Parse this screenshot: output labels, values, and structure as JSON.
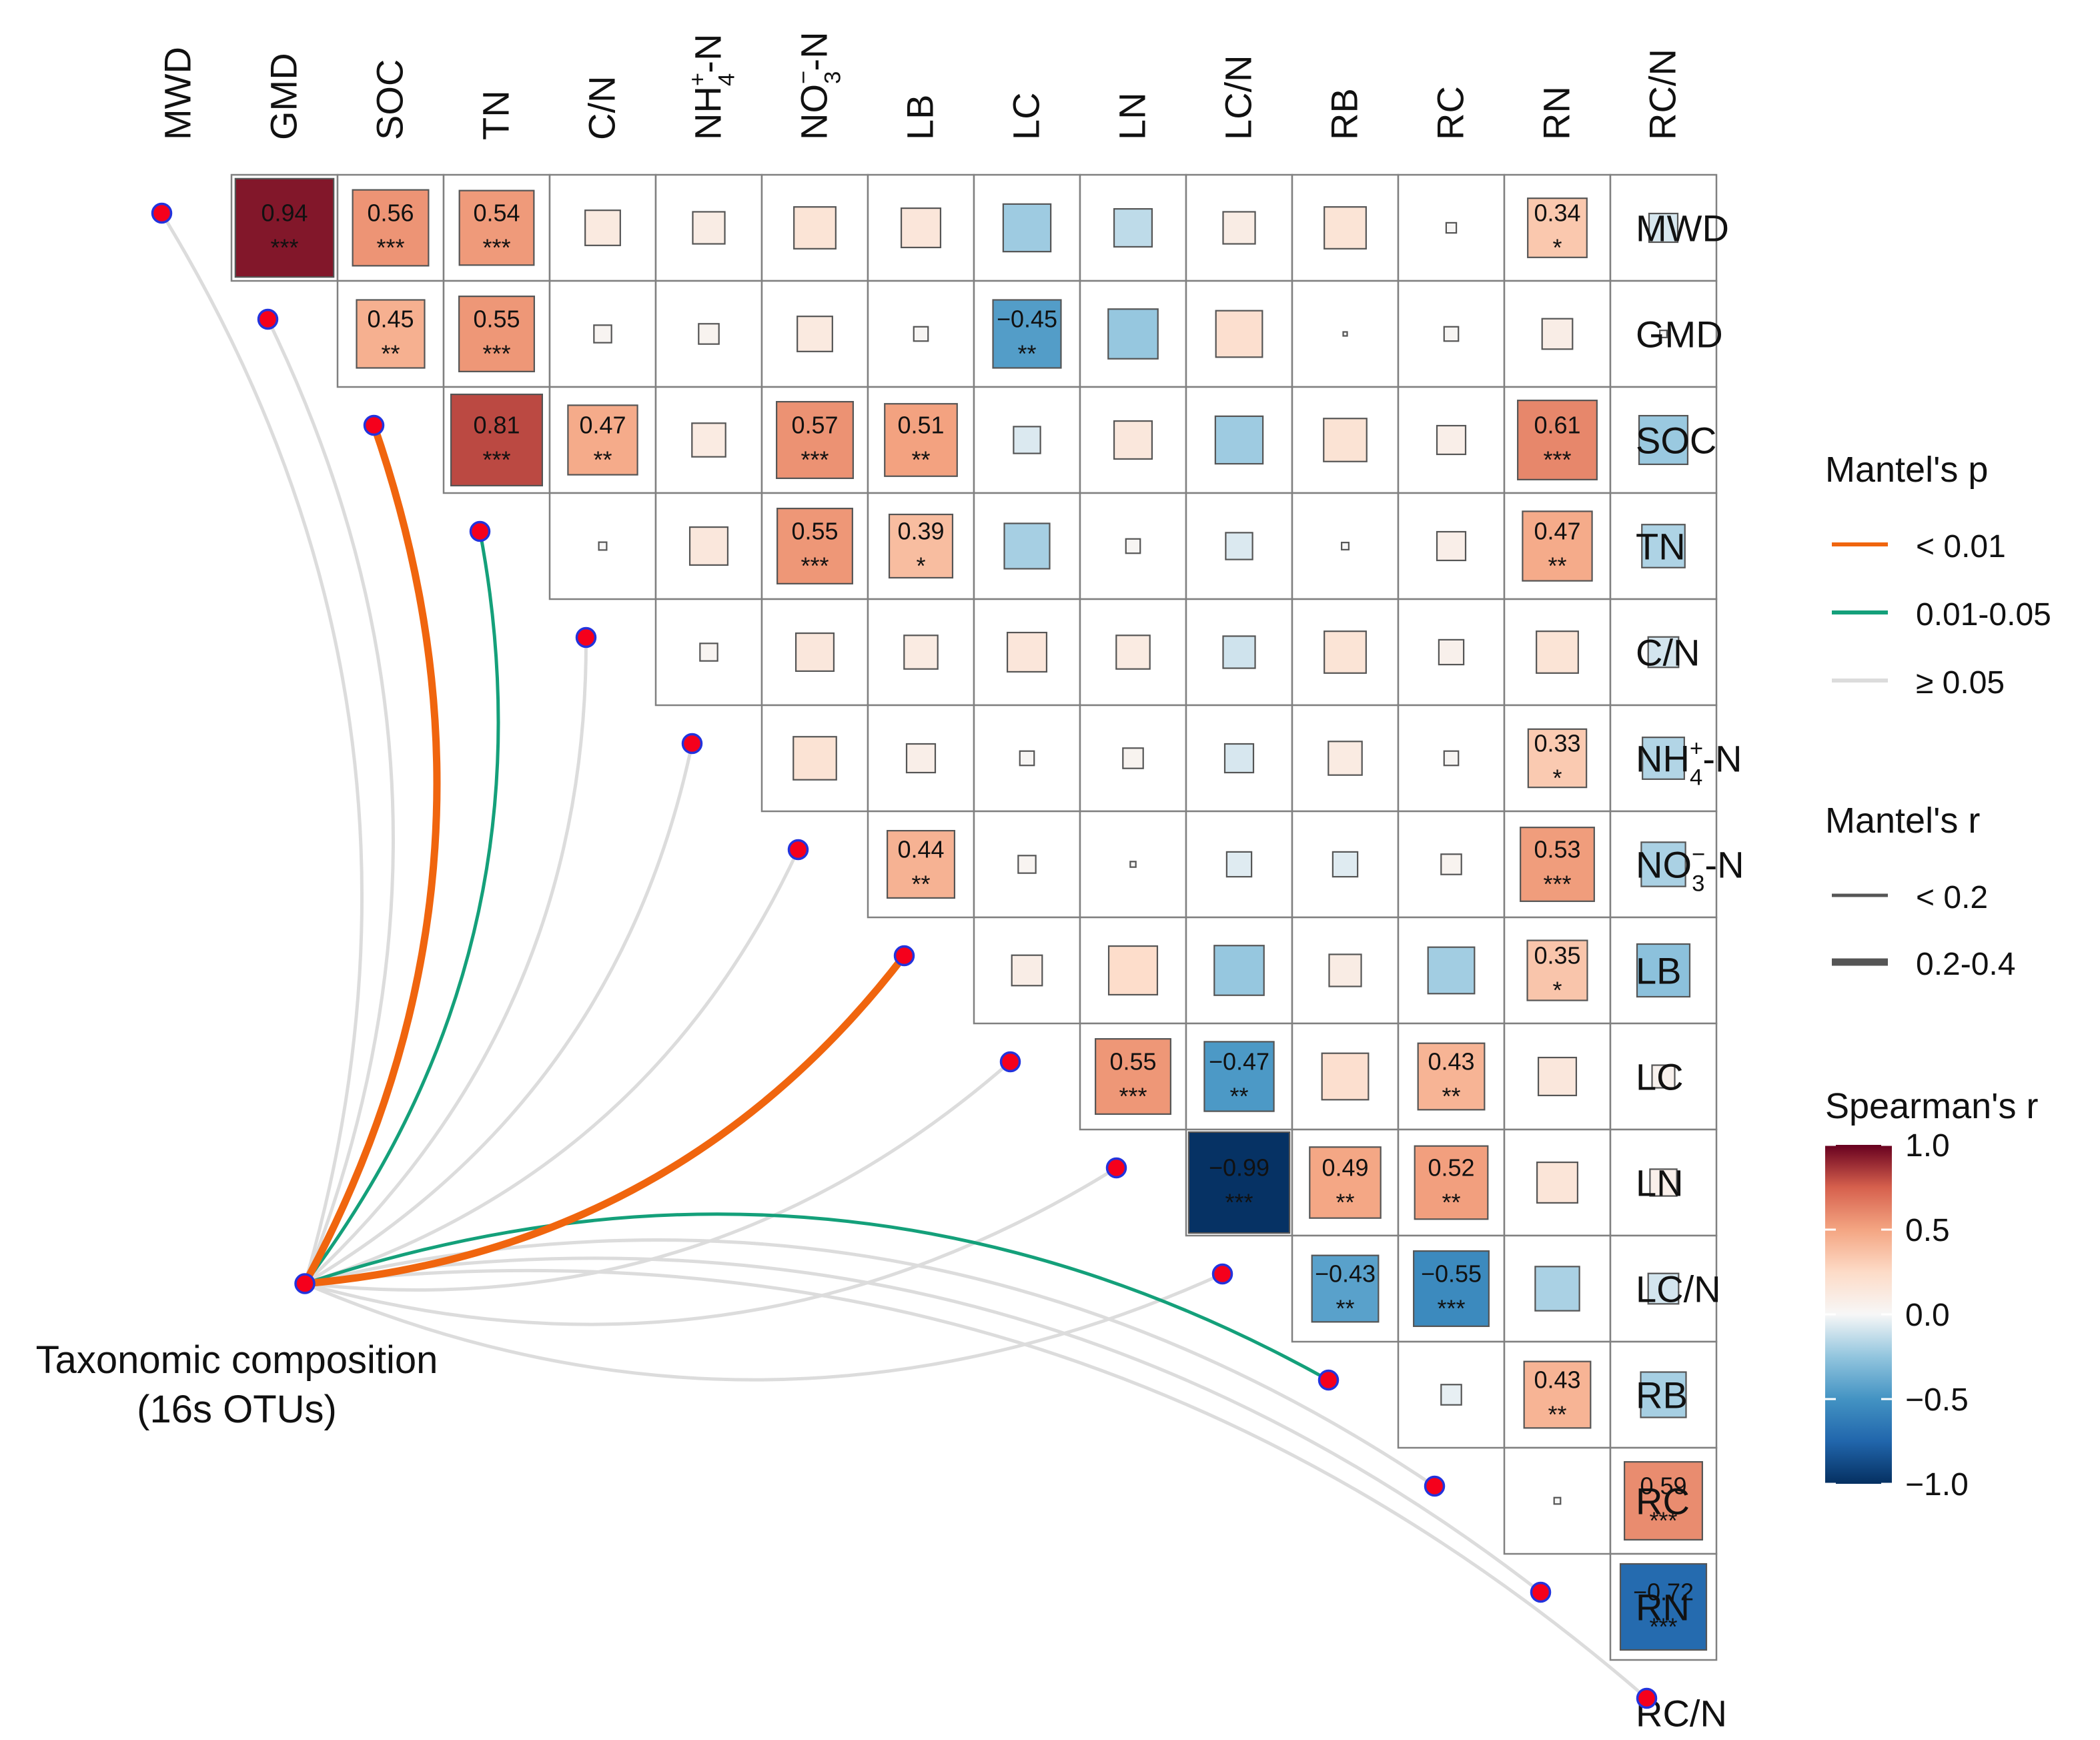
{
  "chart_data": {
    "type": "heatmap",
    "subtype": "correlogram-with-mantel-links",
    "variables": [
      "MWD",
      "GMD",
      "SOC",
      "TN",
      "C/N",
      "NH4+-N",
      "NO3--N",
      "LB",
      "LC",
      "LN",
      "LC/N",
      "RB",
      "RC",
      "RN",
      "RC/N"
    ],
    "variable_labels": [
      {
        "base": "MWD",
        "sup": "",
        "sub": "",
        "tail": ""
      },
      {
        "base": "GMD",
        "sup": "",
        "sub": "",
        "tail": ""
      },
      {
        "base": "SOC",
        "sup": "",
        "sub": "",
        "tail": ""
      },
      {
        "base": "TN",
        "sup": "",
        "sub": "",
        "tail": ""
      },
      {
        "base": "C/N",
        "sup": "",
        "sub": "",
        "tail": ""
      },
      {
        "base": "NH",
        "sup": "+",
        "sub": "4",
        "tail": "-N"
      },
      {
        "base": "NO",
        "sup": "−",
        "sub": "3",
        "tail": "-N"
      },
      {
        "base": "LB",
        "sup": "",
        "sub": "",
        "tail": ""
      },
      {
        "base": "LC",
        "sup": "",
        "sub": "",
        "tail": ""
      },
      {
        "base": "LN",
        "sup": "",
        "sub": "",
        "tail": ""
      },
      {
        "base": "LC/N",
        "sup": "",
        "sub": "",
        "tail": ""
      },
      {
        "base": "RB",
        "sup": "",
        "sub": "",
        "tail": ""
      },
      {
        "base": "RC",
        "sup": "",
        "sub": "",
        "tail": ""
      },
      {
        "base": "RN",
        "sup": "",
        "sub": "",
        "tail": ""
      },
      {
        "base": "RC/N",
        "sup": "",
        "sub": "",
        "tail": ""
      }
    ],
    "spearman_r_matrix": [
      [
        null,
        0.94,
        0.56,
        0.54,
        0.12,
        0.1,
        0.17,
        0.15,
        -0.22,
        -0.14,
        0.1,
        0.17,
        0.01,
        0.34,
        -0.08
      ],
      [
        null,
        null,
        0.45,
        0.55,
        0.03,
        0.04,
        0.12,
        0.02,
        -0.45,
        -0.24,
        0.21,
        0.0,
        0.02,
        0.09,
        0.005
      ],
      [
        null,
        null,
        null,
        0.81,
        0.47,
        0.11,
        0.57,
        0.51,
        -0.07,
        0.14,
        -0.22,
        0.18,
        0.08,
        0.61,
        -0.23
      ],
      [
        null,
        null,
        null,
        null,
        0.006,
        0.14,
        0.55,
        0.39,
        -0.2,
        0.02,
        -0.07,
        0.005,
        0.08,
        0.47,
        -0.18
      ],
      [
        null,
        null,
        null,
        null,
        null,
        0.03,
        0.14,
        0.11,
        0.15,
        0.11,
        -0.1,
        0.17,
        0.06,
        0.17,
        -0.09
      ],
      [
        null,
        null,
        null,
        null,
        null,
        null,
        0.18,
        0.08,
        0.02,
        0.04,
        -0.08,
        0.11,
        0.02,
        0.33,
        -0.17
      ],
      [
        null,
        null,
        null,
        null,
        null,
        null,
        null,
        0.44,
        0.03,
        0.003,
        -0.06,
        -0.06,
        0.04,
        0.53,
        -0.19
      ],
      [
        null,
        null,
        null,
        null,
        null,
        null,
        null,
        null,
        0.09,
        0.23,
        -0.24,
        0.1,
        -0.21,
        0.35,
        -0.27
      ],
      [
        null,
        null,
        null,
        null,
        null,
        null,
        null,
        null,
        null,
        0.55,
        -0.47,
        0.21,
        0.43,
        0.14,
        0.05
      ],
      [
        null,
        null,
        null,
        null,
        null,
        null,
        null,
        null,
        null,
        null,
        -0.99,
        0.49,
        0.52,
        0.16,
        0.07
      ],
      [
        null,
        null,
        null,
        null,
        null,
        null,
        null,
        null,
        null,
        null,
        null,
        -0.43,
        -0.55,
        -0.19,
        -0.09
      ],
      [
        null,
        null,
        null,
        null,
        null,
        null,
        null,
        null,
        null,
        null,
        null,
        null,
        -0.04,
        0.43,
        -0.2
      ],
      [
        null,
        null,
        null,
        null,
        null,
        null,
        null,
        null,
        null,
        null,
        null,
        null,
        null,
        0.004,
        0.59
      ],
      [
        null,
        null,
        null,
        null,
        null,
        null,
        null,
        null,
        null,
        null,
        null,
        null,
        null,
        null,
        -0.72
      ],
      [
        null,
        null,
        null,
        null,
        null,
        null,
        null,
        null,
        null,
        null,
        null,
        null,
        null,
        null,
        null
      ]
    ],
    "labeled_cells": [
      {
        "row": 0,
        "col": 1,
        "text": "0.94",
        "stars": "***"
      },
      {
        "row": 0,
        "col": 2,
        "text": "0.56",
        "stars": "***"
      },
      {
        "row": 0,
        "col": 3,
        "text": "0.54",
        "stars": "***"
      },
      {
        "row": 0,
        "col": 13,
        "text": "0.34",
        "stars": "*"
      },
      {
        "row": 1,
        "col": 2,
        "text": "0.45",
        "stars": "**"
      },
      {
        "row": 1,
        "col": 3,
        "text": "0.55",
        "stars": "***"
      },
      {
        "row": 1,
        "col": 8,
        "text": "−0.45",
        "stars": "**"
      },
      {
        "row": 2,
        "col": 3,
        "text": "0.81",
        "stars": "***"
      },
      {
        "row": 2,
        "col": 4,
        "text": "0.47",
        "stars": "**"
      },
      {
        "row": 2,
        "col": 6,
        "text": "0.57",
        "stars": "***"
      },
      {
        "row": 2,
        "col": 7,
        "text": "0.51",
        "stars": "**"
      },
      {
        "row": 2,
        "col": 13,
        "text": "0.61",
        "stars": "***"
      },
      {
        "row": 3,
        "col": 6,
        "text": "0.55",
        "stars": "***"
      },
      {
        "row": 3,
        "col": 7,
        "text": "0.39",
        "stars": "*"
      },
      {
        "row": 3,
        "col": 13,
        "text": "0.47",
        "stars": "**"
      },
      {
        "row": 5,
        "col": 13,
        "text": "0.33",
        "stars": "*"
      },
      {
        "row": 6,
        "col": 7,
        "text": "0.44",
        "stars": "**"
      },
      {
        "row": 6,
        "col": 13,
        "text": "0.53",
        "stars": "***"
      },
      {
        "row": 7,
        "col": 13,
        "text": "0.35",
        "stars": "*"
      },
      {
        "row": 8,
        "col": 9,
        "text": "0.55",
        "stars": "***"
      },
      {
        "row": 8,
        "col": 10,
        "text": "−0.47",
        "stars": "**"
      },
      {
        "row": 8,
        "col": 12,
        "text": "0.43",
        "stars": "**"
      },
      {
        "row": 9,
        "col": 10,
        "text": "−0.99",
        "stars": "***"
      },
      {
        "row": 9,
        "col": 11,
        "text": "0.49",
        "stars": "**"
      },
      {
        "row": 9,
        "col": 12,
        "text": "0.52",
        "stars": "**"
      },
      {
        "row": 10,
        "col": 11,
        "text": "−0.43",
        "stars": "**"
      },
      {
        "row": 10,
        "col": 12,
        "text": "−0.55",
        "stars": "***"
      },
      {
        "row": 11,
        "col": 13,
        "text": "0.43",
        "stars": "**"
      },
      {
        "row": 12,
        "col": 14,
        "text": "0.59",
        "stars": "***"
      },
      {
        "row": 13,
        "col": 14,
        "text": "−0.72",
        "stars": "***"
      }
    ],
    "mantel": {
      "source_label_line1": "Taxonomic composition",
      "source_label_line2": "(16s OTUs)",
      "links": [
        {
          "target": 0,
          "p_class": "ge0.05",
          "r_class": "lt0.2"
        },
        {
          "target": 1,
          "p_class": "ge0.05",
          "r_class": "lt0.2"
        },
        {
          "target": 2,
          "p_class": "lt0.01",
          "r_class": "0.2-0.4"
        },
        {
          "target": 3,
          "p_class": "0.01-0.05",
          "r_class": "lt0.2"
        },
        {
          "target": 4,
          "p_class": "ge0.05",
          "r_class": "lt0.2"
        },
        {
          "target": 5,
          "p_class": "ge0.05",
          "r_class": "lt0.2"
        },
        {
          "target": 6,
          "p_class": "ge0.05",
          "r_class": "lt0.2"
        },
        {
          "target": 7,
          "p_class": "lt0.01",
          "r_class": "0.2-0.4"
        },
        {
          "target": 8,
          "p_class": "ge0.05",
          "r_class": "lt0.2"
        },
        {
          "target": 9,
          "p_class": "ge0.05",
          "r_class": "lt0.2"
        },
        {
          "target": 10,
          "p_class": "ge0.05",
          "r_class": "lt0.2"
        },
        {
          "target": 11,
          "p_class": "0.01-0.05",
          "r_class": "lt0.2"
        },
        {
          "target": 12,
          "p_class": "ge0.05",
          "r_class": "lt0.2"
        },
        {
          "target": 13,
          "p_class": "ge0.05",
          "r_class": "lt0.2"
        },
        {
          "target": 14,
          "p_class": "ge0.05",
          "r_class": "lt0.2"
        }
      ]
    },
    "legend": {
      "mantel_p_title": "Mantel's p",
      "mantel_p_items": [
        {
          "key": "lt0.01",
          "label": "< 0.01",
          "color": "#f0650e"
        },
        {
          "key": "0.01-0.05",
          "label": "0.01-0.05",
          "color": "#14a07a"
        },
        {
          "key": "ge0.05",
          "label": "≥ 0.05",
          "color": "#dcdcdc"
        }
      ],
      "mantel_r_title": "Mantel's r",
      "mantel_r_items": [
        {
          "key": "lt0.2",
          "label": "< 0.2"
        },
        {
          "key": "0.2-0.4",
          "label": "0.2-0.4"
        }
      ],
      "spearman_title": "Spearman's r",
      "colorbar_ticks": [
        "1.0",
        "0.5",
        "0.0",
        "−0.5",
        "−1.0"
      ],
      "colorbar_range": [
        -1.0,
        1.0
      ],
      "placement": "right"
    },
    "colors": {
      "neg_strong": "#053061",
      "neg_mid": "#2e93c6",
      "neutral": "#ffffff",
      "pos_mid": "#f4a582",
      "pos_strong": "#67001f",
      "grid": "#808080",
      "node_fill": "#f5001c",
      "node_stroke": "#2233dd"
    }
  }
}
